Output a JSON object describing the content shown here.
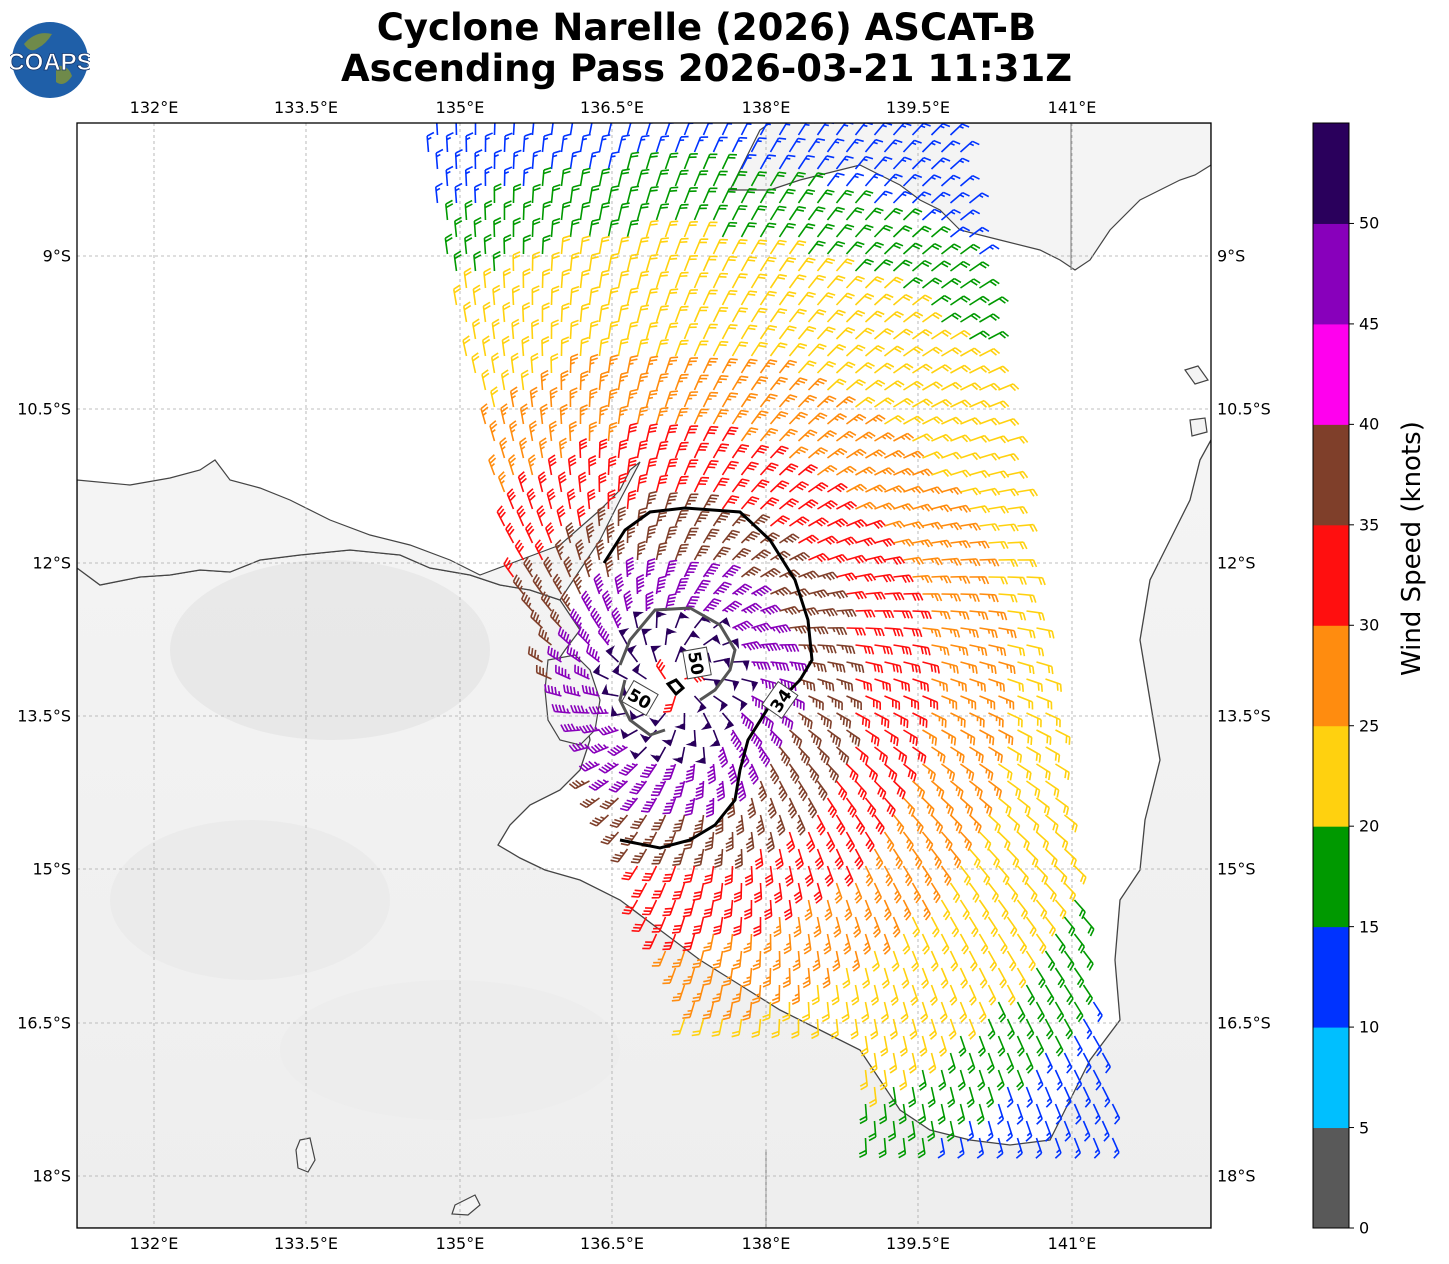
{
  "header": {
    "title_line1": "Cyclone Narelle (2026) ASCAT-B",
    "title_line2": "Ascending Pass 2026-03-21 11:31Z",
    "logo_text": "COAPS"
  },
  "map": {
    "lon_ticks": [
      "132°E",
      "133.5°E",
      "135°E",
      "136.5°E",
      "138°E",
      "139.5°E",
      "141°E"
    ],
    "lat_ticks": [
      "9°S",
      "10.5°S",
      "12°S",
      "13.5°S",
      "15°S",
      "16.5°S",
      "18°S"
    ],
    "contours": [
      {
        "label": "34",
        "color": "#000000"
      },
      {
        "label": "50",
        "color": "#555555"
      },
      {
        "label": "50",
        "color": "#555555"
      }
    ],
    "land_color": "#f2f2f2",
    "coast_color": "#444444"
  },
  "colorbar": {
    "label": "Wind Speed (knots)",
    "tick_labels": [
      "0",
      "5",
      "10",
      "15",
      "20",
      "25",
      "30",
      "35",
      "40",
      "45",
      "50"
    ],
    "colors": [
      "#595959",
      "#00bfff",
      "#0033ff",
      "#009900",
      "#ffd10f",
      "#ff8c0f",
      "#ff0f0f",
      "#7f3f2a",
      "#ff00ee",
      "#8800bb",
      "#2a005c"
    ]
  }
}
